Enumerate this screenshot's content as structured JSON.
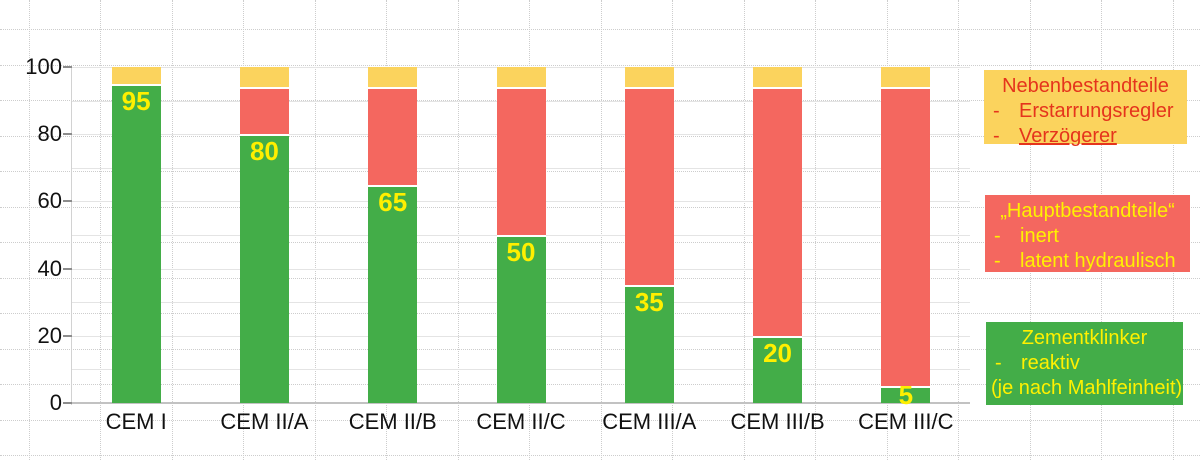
{
  "chart_data": {
    "type": "bar",
    "stacked": true,
    "title": "",
    "categories": [
      "CEM I",
      "CEM II/A",
      "CEM II/B",
      "CEM II/C",
      "CEM III/A",
      "CEM III/B",
      "CEM III/C"
    ],
    "series": [
      {
        "name": "Zementklinker",
        "color": "#43ad48",
        "values": [
          95,
          80,
          65,
          50,
          35,
          20,
          5
        ]
      },
      {
        "name": "Hauptbestandteile",
        "color": "#f4675f",
        "values": [
          0,
          14,
          29,
          44,
          59,
          74,
          89
        ]
      },
      {
        "name": "Nebenbestandteile",
        "color": "#fbd35d",
        "values": [
          5,
          6,
          6,
          6,
          6,
          6,
          6
        ]
      }
    ],
    "value_labels": [
      "95",
      "80",
      "65",
      "50",
      "35",
      "20",
      "5"
    ],
    "value_label_color": "#ffef00",
    "ylim": [
      0,
      100
    ],
    "yticks": [
      "0",
      "20",
      "40",
      "60",
      "80",
      "100"
    ],
    "grid": "horizontal solid lines every 10 units, dotted canvas grid",
    "legend_position": "right"
  },
  "legend": {
    "bullet": "-",
    "boxes": [
      {
        "id": "nebenbestandteile",
        "bg": "#fbd35d",
        "text_color": "#e5341c",
        "title": "Nebenbestandteile",
        "items": [
          "Erstarrungsregler",
          "Verzögerer"
        ]
      },
      {
        "id": "hauptbestandteile",
        "bg": "#f4675f",
        "text_color": "#fff100",
        "title": "„Hauptbestandteile“",
        "items": [
          "inert",
          "latent hydraulisch"
        ]
      },
      {
        "id": "zementklinker",
        "bg": "#43ad48",
        "text_color": "#fff100",
        "title": "Zementklinker",
        "items": [
          "reaktiv"
        ],
        "footer": "(je nach Mahlfeinheit)"
      }
    ]
  },
  "colors": {
    "axis_text": "#111111",
    "gridline": "#e4e4e4",
    "baseline": "#c2c2c2",
    "dotted_grid": "#cdcdcd",
    "separator": "#ffffff"
  }
}
